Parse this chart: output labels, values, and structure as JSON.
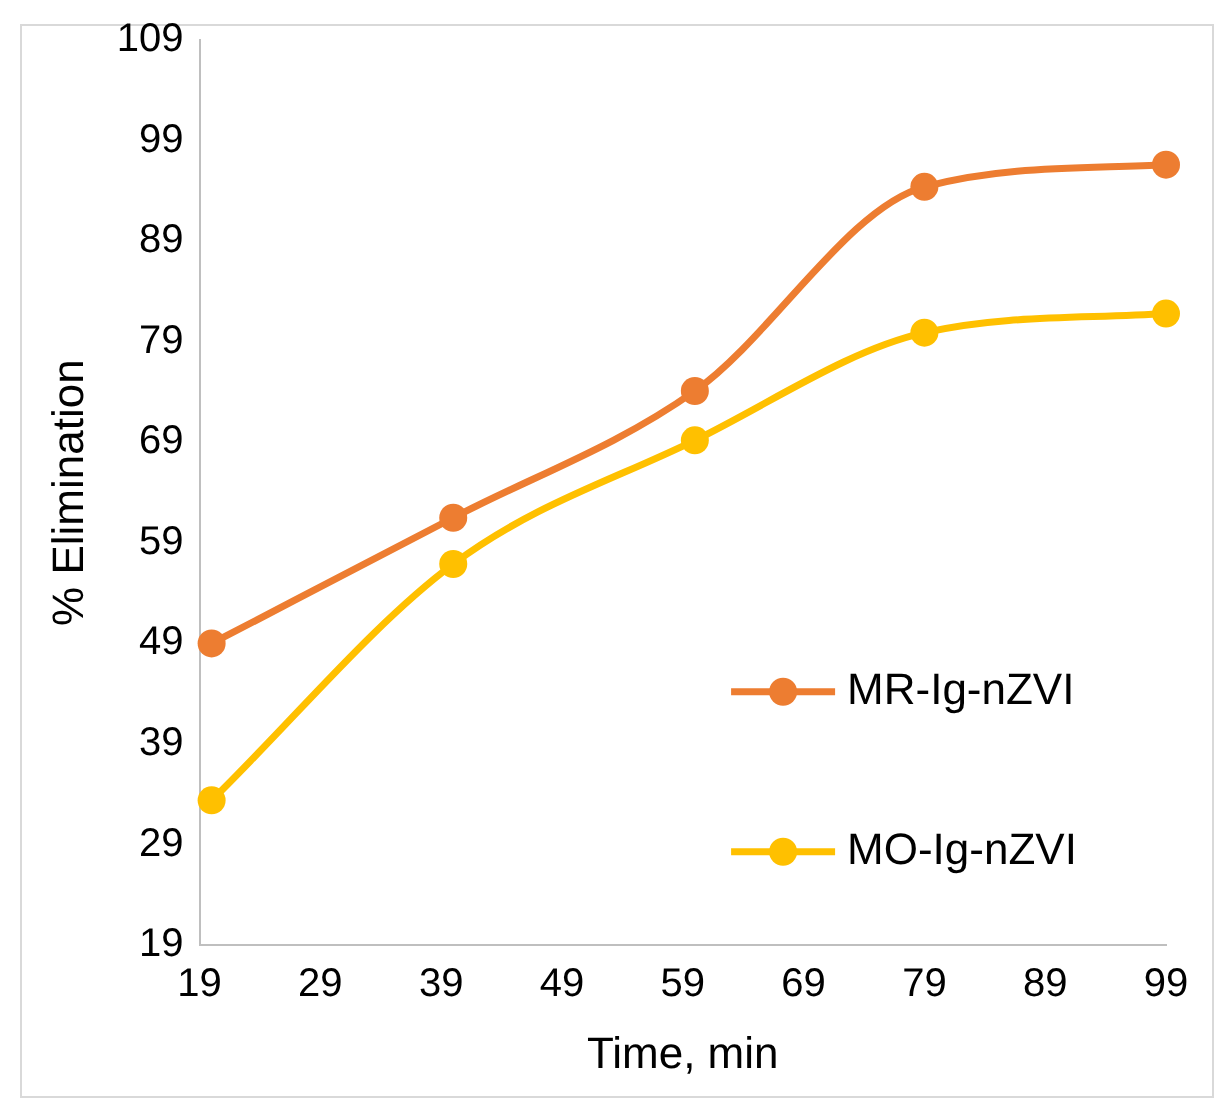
{
  "chart_data": {
    "type": "line",
    "xlabel": "Time, min",
    "ylabel": "% Elimination",
    "x": [
      20,
      40,
      60,
      79,
      99
    ],
    "series": [
      {
        "name": "MR-Ig-nZVI",
        "color": "#ed7d31",
        "values": [
          49,
          61.5,
          74.1,
          94.4,
          96.6
        ]
      },
      {
        "name": "MO-Ig-nZVI",
        "color": "#ffc000",
        "values": [
          33.4,
          56.9,
          69.2,
          79.9,
          81.8
        ]
      }
    ],
    "xlim": [
      19,
      99
    ],
    "xticks": [
      19,
      29,
      39,
      49,
      59,
      69,
      79,
      89,
      99
    ],
    "ylim": [
      19,
      109
    ],
    "yticks": [
      19,
      29,
      39,
      49,
      59,
      69,
      79,
      89,
      99,
      109
    ],
    "grid": false,
    "legend": "right",
    "marker": "circle",
    "line_style": "solid"
  }
}
